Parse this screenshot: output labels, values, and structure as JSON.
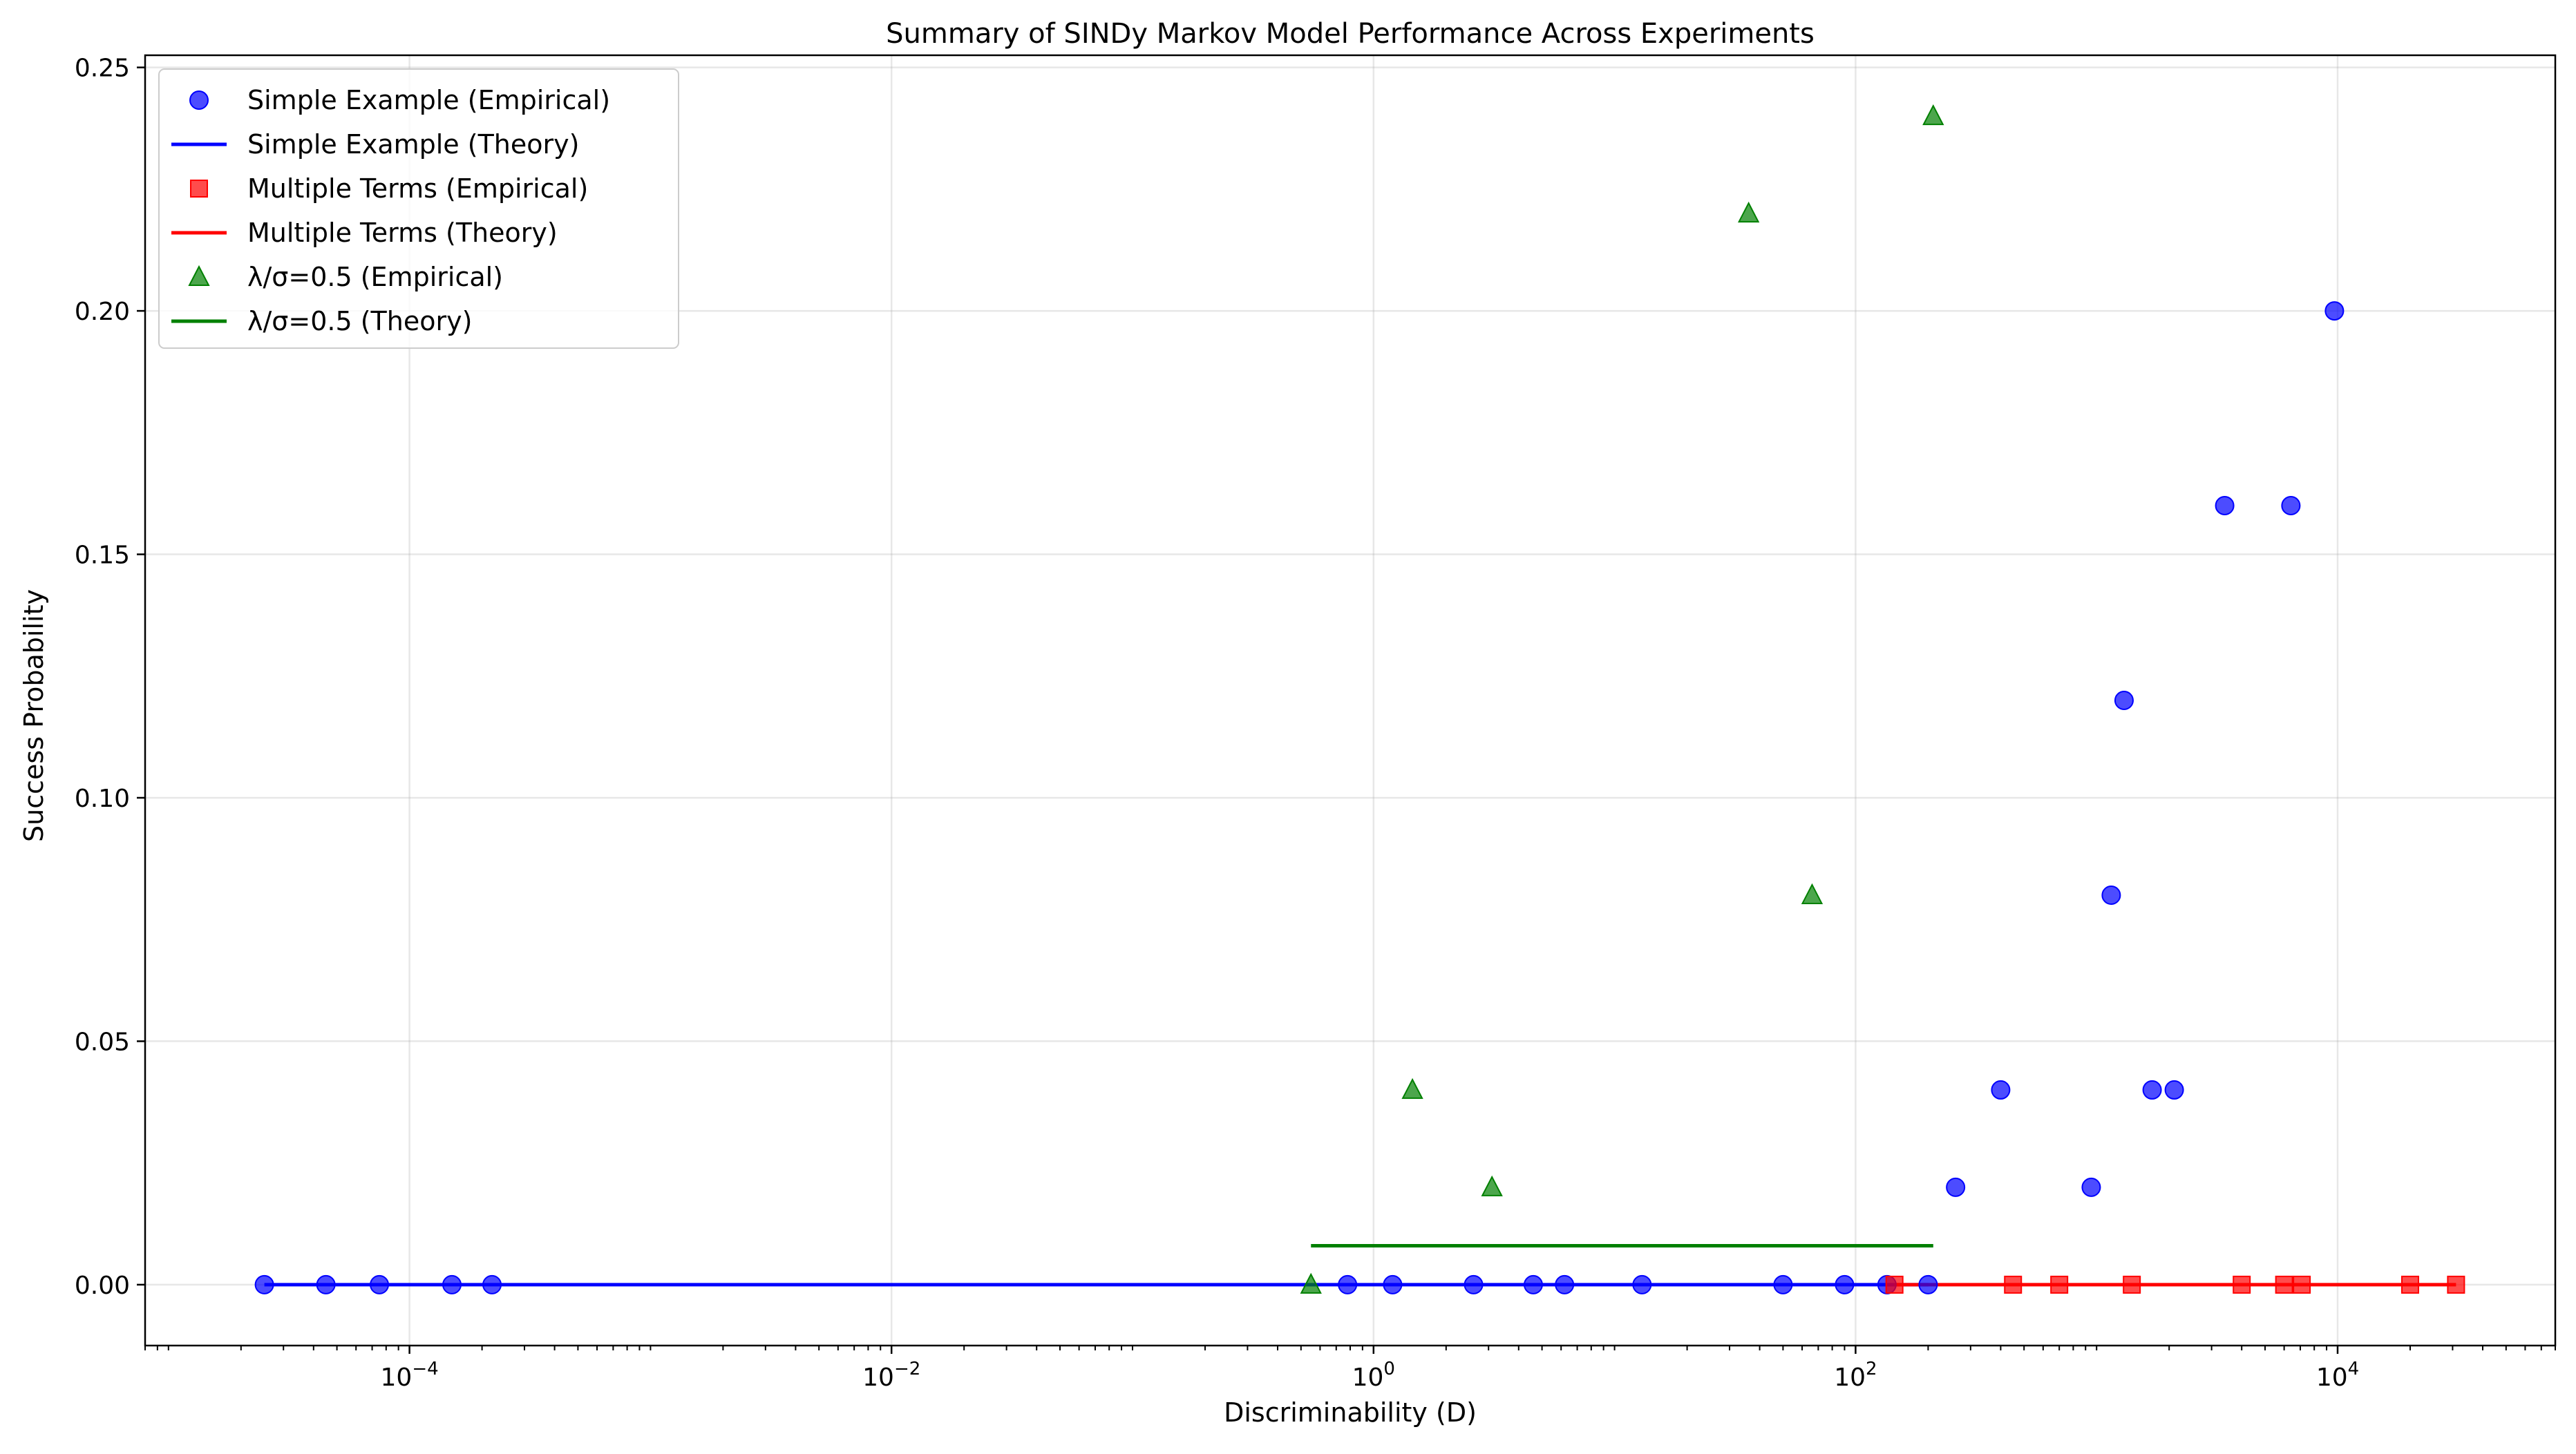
{
  "chart_data": {
    "type": "scatter",
    "title": "Summary of SINDy Markov Model Performance Across Experiments",
    "xlabel": "Discriminability (D)",
    "ylabel": "Success Probability",
    "xscale": "log",
    "xlim": [
      8e-06,
      80000
    ],
    "ylim": [
      -0.0125,
      0.2525
    ],
    "grid": true,
    "legend_position": "upper-left",
    "x_ticks": [
      {
        "value": 0.0001,
        "base": "10",
        "exp": "−4"
      },
      {
        "value": 0.01,
        "base": "10",
        "exp": "−2"
      },
      {
        "value": 1,
        "base": "10",
        "exp": "0"
      },
      {
        "value": 100,
        "base": "10",
        "exp": "2"
      },
      {
        "value": 10000,
        "base": "10",
        "exp": "4"
      }
    ],
    "y_ticks": [
      {
        "value": 0.0,
        "label": "0.00"
      },
      {
        "value": 0.05,
        "label": "0.05"
      },
      {
        "value": 0.1,
        "label": "0.10"
      },
      {
        "value": 0.15,
        "label": "0.15"
      },
      {
        "value": 0.2,
        "label": "0.20"
      },
      {
        "value": 0.25,
        "label": "0.25"
      }
    ],
    "series": [
      {
        "name": "Simple Example (Empirical)",
        "kind": "scatter",
        "marker": "circle",
        "color": "#0000ff",
        "points": [
          [
            2.5e-05,
            0
          ],
          [
            4.5e-05,
            0
          ],
          [
            7.5e-05,
            0
          ],
          [
            0.00015,
            0
          ],
          [
            0.00022,
            0
          ],
          [
            0.78,
            0
          ],
          [
            1.2,
            0
          ],
          [
            2.6,
            0
          ],
          [
            4.6,
            0
          ],
          [
            6.2,
            0
          ],
          [
            13,
            0
          ],
          [
            50,
            0
          ],
          [
            90,
            0
          ],
          [
            135,
            0
          ],
          [
            200,
            0
          ],
          [
            260,
            0.02
          ],
          [
            400,
            0.04
          ],
          [
            950,
            0.02
          ],
          [
            1150,
            0.08
          ],
          [
            1300,
            0.12
          ],
          [
            1700,
            0.04
          ],
          [
            2100,
            0.04
          ],
          [
            3400,
            0.16
          ],
          [
            6400,
            0.16
          ],
          [
            9700,
            0.2
          ]
        ]
      },
      {
        "name": "Simple Example (Theory)",
        "kind": "line",
        "color": "#0000ff",
        "points": [
          [
            2.5e-05,
            0
          ],
          [
            200,
            0
          ]
        ]
      },
      {
        "name": "Multiple Terms (Empirical)",
        "kind": "scatter",
        "marker": "square",
        "color": "#ff0000",
        "points": [
          [
            145,
            0
          ],
          [
            450,
            0
          ],
          [
            700,
            0
          ],
          [
            1400,
            0
          ],
          [
            4000,
            0
          ],
          [
            6000,
            0
          ],
          [
            7100,
            0
          ],
          [
            20000,
            0
          ],
          [
            31000,
            0
          ]
        ]
      },
      {
        "name": "Multiple Terms (Theory)",
        "kind": "line",
        "color": "#ff0000",
        "points": [
          [
            145,
            0
          ],
          [
            31000,
            0
          ]
        ]
      },
      {
        "name": "λ/σ=0.5 (Empirical)",
        "kind": "scatter",
        "marker": "triangle",
        "color": "#008000",
        "points": [
          [
            0.55,
            0
          ],
          [
            1.45,
            0.04
          ],
          [
            3.1,
            0.02
          ],
          [
            36,
            0.22
          ],
          [
            66,
            0.08
          ],
          [
            210,
            0.24
          ]
        ]
      },
      {
        "name": "λ/σ=0.5 (Theory)",
        "kind": "line",
        "color": "#008000",
        "points": [
          [
            0.55,
            0.008
          ],
          [
            210,
            0.008
          ]
        ]
      }
    ]
  }
}
